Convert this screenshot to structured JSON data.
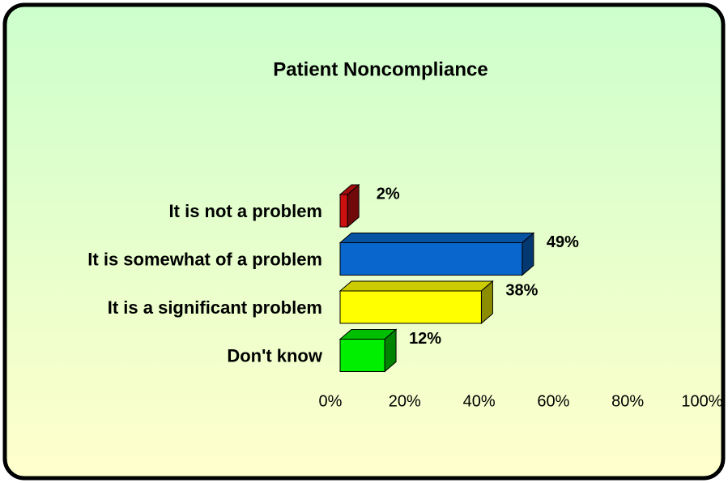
{
  "chart_data": {
    "type": "bar",
    "orientation": "horizontal",
    "title": "Patient Noncompliance",
    "categories": [
      "It is not a problem",
      "It is somewhat of a problem",
      "It is a significant problem",
      "Don't know"
    ],
    "values": [
      2,
      49,
      38,
      12
    ],
    "value_labels": [
      "2%",
      "49%",
      "38%",
      "12%"
    ],
    "colors": [
      "#cc1010",
      "#0866cc",
      "#ffff00",
      "#00ee00"
    ],
    "xlim": [
      0,
      100
    ],
    "xticks": [
      {
        "value": 0,
        "label": "0%"
      },
      {
        "value": 20,
        "label": "20%"
      },
      {
        "value": 40,
        "label": "40%"
      },
      {
        "value": 60,
        "label": "60%"
      },
      {
        "value": 80,
        "label": "80%"
      },
      {
        "value": 100,
        "label": "100%"
      }
    ]
  }
}
